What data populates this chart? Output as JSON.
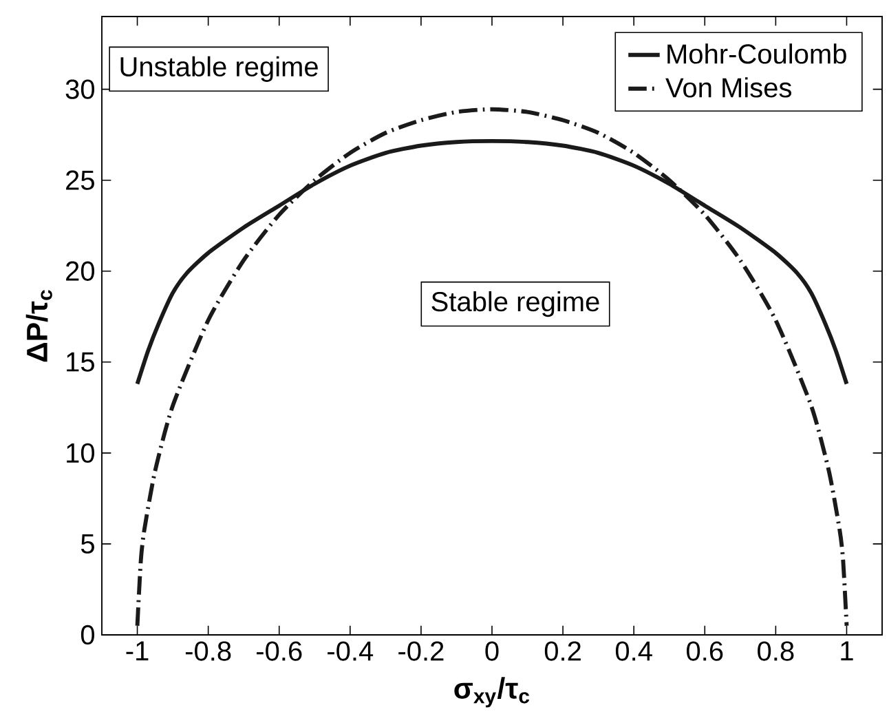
{
  "chart_data": {
    "type": "line",
    "xlabel": "σ$_{xy}$/τ$_{c}$",
    "ylabel": "ΔP/τ$_{c}$",
    "xlim": [
      -1.1,
      1.1
    ],
    "ylim": [
      0,
      34
    ],
    "xticks": [
      -1,
      -0.8,
      -0.6,
      -0.4,
      -0.2,
      0,
      0.2,
      0.4,
      0.6,
      0.8,
      1
    ],
    "yticks": [
      0,
      5,
      10,
      15,
      20,
      25,
      30
    ],
    "grid": false,
    "legend": "top right",
    "marker": "none",
    "annotations": [
      "Unstable regime",
      "Stable regime"
    ],
    "series": [
      {
        "name": "Mohr-Coulomb",
        "color": "#1a1a1a",
        "line_style": "solid",
        "x": [
          -1,
          -0.97,
          -0.94,
          -0.9,
          -0.86,
          -0.8,
          -0.7,
          -0.6,
          -0.5,
          -0.4,
          -0.3,
          -0.2,
          -0.1,
          0,
          0.1,
          0.2,
          0.3,
          0.4,
          0.5,
          0.6,
          0.7,
          0.8,
          0.86,
          0.9,
          0.94,
          0.97,
          1
        ],
        "values": [
          13.8,
          15.6,
          17.1,
          18.8,
          19.9,
          21,
          22.4,
          23.6,
          24.8,
          25.8,
          26.5,
          26.9,
          27.1,
          27.15,
          27.1,
          26.9,
          26.5,
          25.8,
          24.8,
          23.6,
          22.4,
          21,
          19.9,
          18.8,
          17.1,
          15.6,
          13.8
        ]
      },
      {
        "name": "Von Mises",
        "color": "#1a1a1a",
        "line_style": "dashed",
        "x": [
          -1,
          -0.99,
          -0.98,
          -0.95,
          -0.9,
          -0.8,
          -0.7,
          -0.6,
          -0.5,
          -0.4,
          -0.3,
          -0.2,
          -0.1,
          0,
          0.1,
          0.2,
          0.3,
          0.4,
          0.5,
          0.6,
          0.7,
          0.8,
          0.9,
          0.95,
          0.98,
          0.99,
          1
        ],
        "values": [
          0.5,
          4.1,
          5.8,
          9,
          12.6,
          17.3,
          20.6,
          23.1,
          25,
          26.5,
          27.6,
          28.3,
          28.75,
          28.9,
          28.75,
          28.3,
          27.6,
          26.5,
          25,
          23.1,
          20.6,
          17.3,
          12.6,
          9,
          5.8,
          4.1,
          0.5
        ]
      }
    ]
  }
}
